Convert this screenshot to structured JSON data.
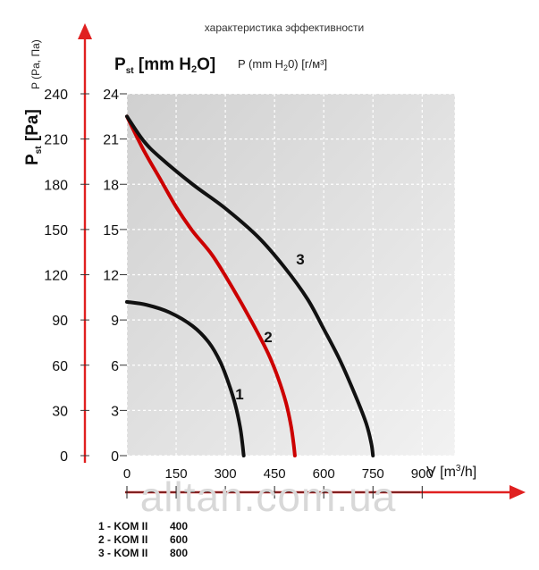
{
  "header": "характеристика эффективности",
  "watermark": "alltan.com.ua",
  "colors": {
    "grid_bg": "#d9d9d9",
    "curve_1": "#111111",
    "curve_2": "#cc0000",
    "curve_3": "#111111",
    "axis_arrow": "#e02020"
  },
  "chart_data": {
    "type": "line",
    "x_label": "V [m³/h]",
    "y_label_mm_main": "Pst [mm H2O]",
    "y_label_mm_secondary": "P (mm H2O) [г/м³]",
    "y_label_pa_main": "Pst [Pa]",
    "y_label_pa_secondary": "P (Pa, Па)",
    "x_ticks": [
      "0",
      "150",
      "300",
      "450",
      "600",
      "750",
      "900"
    ],
    "y_ticks_mm": [
      "0",
      "3",
      "6",
      "9",
      "12",
      "15",
      "18",
      "21",
      "24"
    ],
    "y_ticks_pa": [
      "0",
      "30",
      "60",
      "90",
      "120",
      "150",
      "180",
      "210",
      "240"
    ],
    "xlim": [
      0,
      1000
    ],
    "ylim_mm": [
      0,
      24
    ],
    "ylim_pa": [
      0,
      240
    ],
    "grid": true,
    "series": [
      {
        "name": "1",
        "x": [
          0,
          60,
          130,
          200,
          250,
          285,
          310,
          330,
          345,
          352,
          355,
          356
        ],
        "y": [
          10.2,
          10.0,
          9.5,
          8.6,
          7.5,
          6.2,
          4.8,
          3.4,
          1.9,
          0.8,
          0.2,
          0
        ]
      },
      {
        "name": "2",
        "x": [
          0,
          50,
          100,
          150,
          200,
          260,
          320,
          380,
          430,
          460,
          485,
          500,
          508,
          512
        ],
        "y": [
          22.5,
          20.3,
          18.4,
          16.5,
          14.9,
          13.3,
          11.2,
          8.9,
          6.8,
          5.2,
          3.5,
          2.0,
          0.8,
          0
        ]
      },
      {
        "name": "3",
        "x": [
          0,
          50,
          100,
          200,
          300,
          400,
          480,
          550,
          600,
          650,
          700,
          730,
          745,
          750
        ],
        "y": [
          22.5,
          20.9,
          19.8,
          18.0,
          16.4,
          14.5,
          12.5,
          10.4,
          8.4,
          6.3,
          3.8,
          2.1,
          0.8,
          0
        ]
      }
    ],
    "legend": [
      {
        "num": "1",
        "model": "KOM II",
        "size": "400"
      },
      {
        "num": "2",
        "model": "KOM II",
        "size": "600"
      },
      {
        "num": "3",
        "model": "KOM II",
        "size": "800"
      }
    ]
  }
}
